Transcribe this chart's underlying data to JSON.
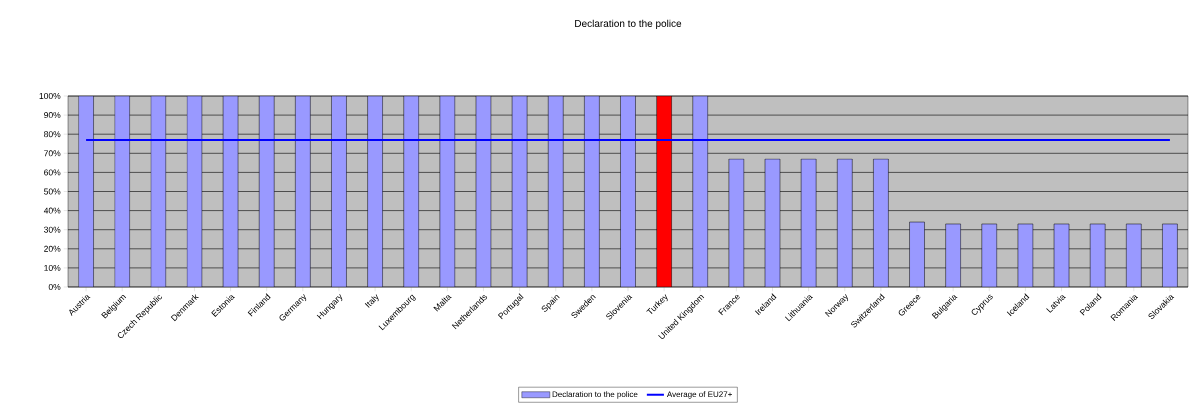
{
  "chart_data": {
    "type": "bar",
    "title": "Declaration to the police",
    "categories": [
      "Austria",
      "Belgium",
      "Czech Republic",
      "Denmark",
      "Estonia",
      "Finland",
      "Germany",
      "Hungary",
      "Italy",
      "Luxembourg",
      "Malta",
      "Netherlands",
      "Portugal",
      "Spain",
      "Sweden",
      "Slovenia",
      "Turkey",
      "United Kingdom",
      "France",
      "Ireland",
      "Lithuania",
      "Norway",
      "Switzerland",
      "Greece",
      "Bulgaria",
      "Cyprus",
      "Iceland",
      "Latvia",
      "Poland",
      "Romania",
      "Slovakia"
    ],
    "series": [
      {
        "name": "Declaration to the police",
        "color": "#9999ff",
        "colors": [
          "#9999ff",
          "#9999ff",
          "#9999ff",
          "#9999ff",
          "#9999ff",
          "#9999ff",
          "#9999ff",
          "#9999ff",
          "#9999ff",
          "#9999ff",
          "#9999ff",
          "#9999ff",
          "#9999ff",
          "#9999ff",
          "#9999ff",
          "#9999ff",
          "#ff0000",
          "#9999ff",
          "#9999ff",
          "#9999ff",
          "#9999ff",
          "#9999ff",
          "#9999ff",
          "#9999ff",
          "#9999ff",
          "#9999ff",
          "#9999ff",
          "#9999ff",
          "#9999ff",
          "#9999ff",
          "#9999ff"
        ],
        "values": [
          100,
          100,
          100,
          100,
          100,
          100,
          100,
          100,
          100,
          100,
          100,
          100,
          100,
          100,
          100,
          100,
          100,
          100,
          67,
          67,
          67,
          67,
          67,
          34,
          33,
          33,
          33,
          33,
          33,
          33,
          33
        ]
      },
      {
        "name": "Average of EU27+",
        "type": "line",
        "color": "#0000ff",
        "values": [
          77,
          77,
          77,
          77,
          77,
          77,
          77,
          77,
          77,
          77,
          77,
          77,
          77,
          77,
          77,
          77,
          77,
          77,
          77,
          77,
          77,
          77,
          77,
          77,
          77,
          77,
          77,
          77,
          77,
          77,
          77
        ]
      }
    ],
    "ylim": [
      0,
      100
    ],
    "yticks": [
      {
        "value": 0,
        "label": "0%"
      },
      {
        "value": 10,
        "label": "10%"
      },
      {
        "value": 20,
        "label": "20%"
      },
      {
        "value": 30,
        "label": "30%"
      },
      {
        "value": 40,
        "label": "40%"
      },
      {
        "value": 50,
        "label": "50%"
      },
      {
        "value": 60,
        "label": "60%"
      },
      {
        "value": 70,
        "label": "70%"
      },
      {
        "value": 80,
        "label": "80%"
      },
      {
        "value": 90,
        "label": "90%"
      },
      {
        "value": 100,
        "label": "100%"
      }
    ],
    "grid": "y",
    "legend": "bottom",
    "marker": "none",
    "line_style": "solid"
  }
}
